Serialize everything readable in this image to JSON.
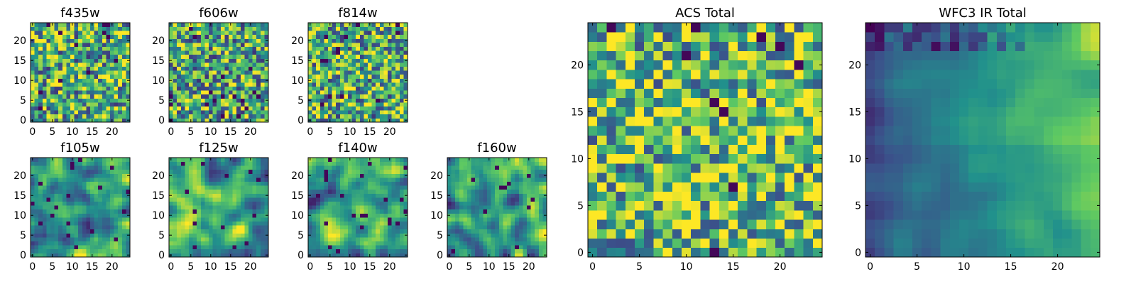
{
  "figure": {
    "colormap": "viridis",
    "cmap_stops": [
      "#440154",
      "#3b528b",
      "#21918c",
      "#5ec962",
      "#fde725"
    ]
  },
  "chart_data": [
    {
      "type": "heatmap",
      "title": "f435w",
      "grid": 25,
      "xticks": [
        0,
        5,
        10,
        15,
        20
      ],
      "yticks": [
        0,
        5,
        10,
        15,
        20
      ],
      "pattern": "noise",
      "seed": 11,
      "smoothing": 0,
      "bias": 0.62
    },
    {
      "type": "heatmap",
      "title": "f606w",
      "grid": 25,
      "xticks": [
        0,
        5,
        10,
        15,
        20
      ],
      "yticks": [
        0,
        5,
        10,
        15,
        20
      ],
      "pattern": "noise",
      "seed": 23,
      "smoothing": 0,
      "bias": 0.6
    },
    {
      "type": "heatmap",
      "title": "f814w",
      "grid": 25,
      "xticks": [
        0,
        5,
        10,
        15,
        20
      ],
      "yticks": [
        0,
        5,
        10,
        15,
        20
      ],
      "pattern": "noise",
      "seed": 37,
      "smoothing": 0,
      "bias": 0.62
    },
    {
      "type": "heatmap",
      "title": "f105w",
      "grid": 25,
      "xticks": [
        0,
        5,
        10,
        15,
        20
      ],
      "yticks": [
        0,
        5,
        10,
        15,
        20
      ],
      "pattern": "smooth",
      "seed": 41,
      "smoothing": 2,
      "bias": 0.58
    },
    {
      "type": "heatmap",
      "title": "f125w",
      "grid": 25,
      "xticks": [
        0,
        5,
        10,
        15,
        20
      ],
      "yticks": [
        0,
        5,
        10,
        15,
        20
      ],
      "pattern": "smooth",
      "seed": 53,
      "smoothing": 2,
      "bias": 0.6
    },
    {
      "type": "heatmap",
      "title": "f140w",
      "grid": 25,
      "xticks": [
        0,
        5,
        10,
        15,
        20
      ],
      "yticks": [
        0,
        5,
        10,
        15,
        20
      ],
      "pattern": "smooth",
      "seed": 67,
      "smoothing": 2,
      "bias": 0.55
    },
    {
      "type": "heatmap",
      "title": "f160w",
      "grid": 25,
      "xticks": [
        0,
        5,
        10,
        15,
        20
      ],
      "yticks": [
        0,
        5,
        10,
        15,
        20
      ],
      "pattern": "smooth",
      "seed": 79,
      "smoothing": 2,
      "bias": 0.55
    },
    {
      "type": "heatmap",
      "title": "ACS Total",
      "grid": 25,
      "xticks": [
        0,
        5,
        10,
        15,
        20
      ],
      "yticks": [
        0,
        5,
        10,
        15,
        20
      ],
      "pattern": "noise",
      "seed": 97,
      "smoothing": 0,
      "bias": 0.68
    },
    {
      "type": "heatmap",
      "title": "WFC3 IR Total",
      "grid": 25,
      "xticks": [
        0,
        5,
        10,
        15,
        20
      ],
      "yticks": [
        0,
        5,
        10,
        15,
        20
      ],
      "pattern": "gradient",
      "seed": 113,
      "smoothing": 2,
      "bias": 0.45
    }
  ]
}
